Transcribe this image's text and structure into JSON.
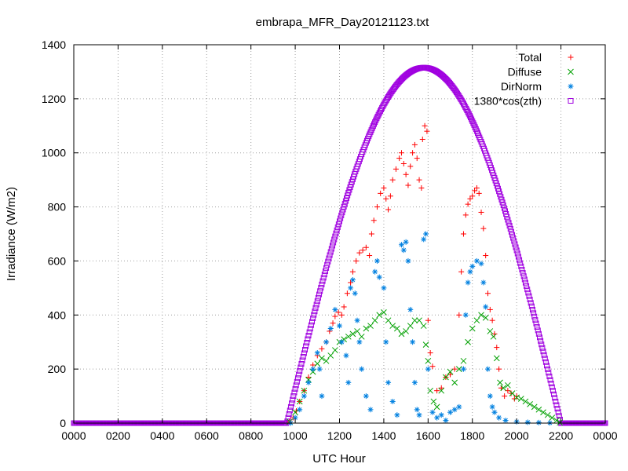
{
  "chart_data": {
    "type": "scatter",
    "title": "embrapa_MFR_Day20121123.txt",
    "xlabel": "UTC Hour",
    "ylabel": "Irradiance (W/m2)",
    "xlim": [
      0,
      2400
    ],
    "ylim": [
      0,
      1400
    ],
    "x_ticks": [
      "0000",
      "0200",
      "0400",
      "0600",
      "0800",
      "1000",
      "1200",
      "1400",
      "1600",
      "1800",
      "2000",
      "2200",
      "0000"
    ],
    "y_ticks": [
      "0",
      "200",
      "400",
      "600",
      "800",
      "1000",
      "1200",
      "1400"
    ],
    "grid": true,
    "legend_position": "top-right",
    "series": [
      {
        "name": "Total",
        "marker": "+",
        "color": "#ff0000",
        "points": [
          [
            975,
            5
          ],
          [
            990,
            20
          ],
          [
            1005,
            45
          ],
          [
            1020,
            80
          ],
          [
            1040,
            120
          ],
          [
            1060,
            170
          ],
          [
            1080,
            215
          ],
          [
            1100,
            250
          ],
          [
            1120,
            275
          ],
          [
            1140,
            300
          ],
          [
            1155,
            340
          ],
          [
            1170,
            370
          ],
          [
            1180,
            395
          ],
          [
            1195,
            410
          ],
          [
            1210,
            400
          ],
          [
            1220,
            430
          ],
          [
            1235,
            480
          ],
          [
            1250,
            520
          ],
          [
            1260,
            560
          ],
          [
            1275,
            600
          ],
          [
            1290,
            630
          ],
          [
            1305,
            640
          ],
          [
            1320,
            650
          ],
          [
            1335,
            620
          ],
          [
            1345,
            700
          ],
          [
            1355,
            750
          ],
          [
            1370,
            800
          ],
          [
            1385,
            850
          ],
          [
            1400,
            870
          ],
          [
            1410,
            830
          ],
          [
            1420,
            790
          ],
          [
            1430,
            840
          ],
          [
            1440,
            900
          ],
          [
            1455,
            940
          ],
          [
            1470,
            980
          ],
          [
            1480,
            1000
          ],
          [
            1490,
            960
          ],
          [
            1500,
            920
          ],
          [
            1510,
            880
          ],
          [
            1520,
            950
          ],
          [
            1530,
            1000
          ],
          [
            1540,
            1030
          ],
          [
            1550,
            980
          ],
          [
            1560,
            900
          ],
          [
            1570,
            870
          ],
          [
            1575,
            1050
          ],
          [
            1585,
            1100
          ],
          [
            1595,
            1080
          ],
          [
            1600,
            380
          ],
          [
            1610,
            260
          ],
          [
            1620,
            210
          ],
          [
            1640,
            120
          ],
          [
            1660,
            130
          ],
          [
            1680,
            170
          ],
          [
            1700,
            180
          ],
          [
            1720,
            200
          ],
          [
            1740,
            400
          ],
          [
            1750,
            560
          ],
          [
            1760,
            700
          ],
          [
            1770,
            770
          ],
          [
            1780,
            810
          ],
          [
            1790,
            830
          ],
          [
            1800,
            840
          ],
          [
            1810,
            860
          ],
          [
            1820,
            870
          ],
          [
            1830,
            850
          ],
          [
            1840,
            780
          ],
          [
            1850,
            720
          ],
          [
            1860,
            620
          ],
          [
            1870,
            480
          ],
          [
            1880,
            420
          ],
          [
            1890,
            380
          ],
          [
            1900,
            330
          ],
          [
            1910,
            280
          ],
          [
            1920,
            200
          ],
          [
            1930,
            130
          ],
          [
            1945,
            100
          ],
          [
            1960,
            120
          ],
          [
            1975,
            110
          ],
          [
            1990,
            90
          ],
          [
            2000,
            100
          ]
        ]
      },
      {
        "name": "Diffuse",
        "marker": "x",
        "color": "#00a000",
        "points": [
          [
            975,
            5
          ],
          [
            1000,
            40
          ],
          [
            1020,
            80
          ],
          [
            1040,
            120
          ],
          [
            1060,
            160
          ],
          [
            1080,
            190
          ],
          [
            1100,
            220
          ],
          [
            1120,
            240
          ],
          [
            1140,
            230
          ],
          [
            1160,
            250
          ],
          [
            1180,
            270
          ],
          [
            1200,
            300
          ],
          [
            1220,
            310
          ],
          [
            1240,
            320
          ],
          [
            1260,
            330
          ],
          [
            1280,
            340
          ],
          [
            1300,
            320
          ],
          [
            1320,
            350
          ],
          [
            1340,
            360
          ],
          [
            1360,
            380
          ],
          [
            1380,
            400
          ],
          [
            1400,
            410
          ],
          [
            1420,
            380
          ],
          [
            1440,
            360
          ],
          [
            1460,
            350
          ],
          [
            1480,
            330
          ],
          [
            1500,
            340
          ],
          [
            1520,
            360
          ],
          [
            1540,
            380
          ],
          [
            1560,
            380
          ],
          [
            1580,
            360
          ],
          [
            1590,
            290
          ],
          [
            1600,
            230
          ],
          [
            1610,
            120
          ],
          [
            1625,
            80
          ],
          [
            1640,
            60
          ],
          [
            1660,
            120
          ],
          [
            1680,
            170
          ],
          [
            1700,
            190
          ],
          [
            1720,
            150
          ],
          [
            1740,
            200
          ],
          [
            1760,
            230
          ],
          [
            1780,
            300
          ],
          [
            1800,
            350
          ],
          [
            1820,
            380
          ],
          [
            1840,
            400
          ],
          [
            1860,
            390
          ],
          [
            1880,
            340
          ],
          [
            1895,
            320
          ],
          [
            1910,
            240
          ],
          [
            1925,
            150
          ],
          [
            1940,
            130
          ],
          [
            1960,
            140
          ],
          [
            1980,
            110
          ],
          [
            2000,
            95
          ],
          [
            2020,
            90
          ],
          [
            2040,
            80
          ],
          [
            2060,
            70
          ],
          [
            2080,
            60
          ],
          [
            2100,
            50
          ],
          [
            2120,
            40
          ],
          [
            2140,
            30
          ],
          [
            2160,
            20
          ],
          [
            2180,
            10
          ],
          [
            2195,
            2
          ]
        ]
      },
      {
        "name": "DirNorm",
        "marker": "*",
        "color": "#0080e0",
        "points": [
          [
            980,
            0
          ],
          [
            1000,
            20
          ],
          [
            1020,
            50
          ],
          [
            1040,
            100
          ],
          [
            1060,
            150
          ],
          [
            1080,
            200
          ],
          [
            1100,
            260
          ],
          [
            1110,
            200
          ],
          [
            1120,
            100
          ],
          [
            1140,
            300
          ],
          [
            1160,
            350
          ],
          [
            1180,
            420
          ],
          [
            1200,
            360
          ],
          [
            1210,
            300
          ],
          [
            1230,
            250
          ],
          [
            1240,
            150
          ],
          [
            1250,
            500
          ],
          [
            1260,
            530
          ],
          [
            1270,
            480
          ],
          [
            1280,
            380
          ],
          [
            1290,
            300
          ],
          [
            1300,
            200
          ],
          [
            1320,
            100
          ],
          [
            1340,
            50
          ],
          [
            1360,
            560
          ],
          [
            1370,
            600
          ],
          [
            1380,
            540
          ],
          [
            1400,
            500
          ],
          [
            1410,
            300
          ],
          [
            1420,
            150
          ],
          [
            1440,
            80
          ],
          [
            1460,
            30
          ],
          [
            1480,
            660
          ],
          [
            1490,
            640
          ],
          [
            1500,
            670
          ],
          [
            1510,
            600
          ],
          [
            1520,
            420
          ],
          [
            1530,
            300
          ],
          [
            1540,
            150
          ],
          [
            1550,
            50
          ],
          [
            1560,
            30
          ],
          [
            1580,
            680
          ],
          [
            1590,
            700
          ],
          [
            1600,
            200
          ],
          [
            1620,
            40
          ],
          [
            1640,
            20
          ],
          [
            1660,
            30
          ],
          [
            1680,
            10
          ],
          [
            1700,
            40
          ],
          [
            1720,
            50
          ],
          [
            1740,
            60
          ],
          [
            1760,
            200
          ],
          [
            1770,
            400
          ],
          [
            1780,
            520
          ],
          [
            1790,
            560
          ],
          [
            1800,
            580
          ],
          [
            1820,
            600
          ],
          [
            1840,
            590
          ],
          [
            1850,
            520
          ],
          [
            1860,
            430
          ],
          [
            1870,
            200
          ],
          [
            1880,
            100
          ],
          [
            1890,
            60
          ],
          [
            1900,
            40
          ],
          [
            1920,
            20
          ],
          [
            1950,
            10
          ],
          [
            2000,
            5
          ],
          [
            2050,
            3
          ],
          [
            2100,
            2
          ],
          [
            2150,
            1
          ]
        ]
      },
      {
        "name": "1380*cos(zth)",
        "marker": "square",
        "color": "#a000e0",
        "sunrise": 962,
        "sunset": 2200,
        "peak": 1315
      }
    ]
  }
}
